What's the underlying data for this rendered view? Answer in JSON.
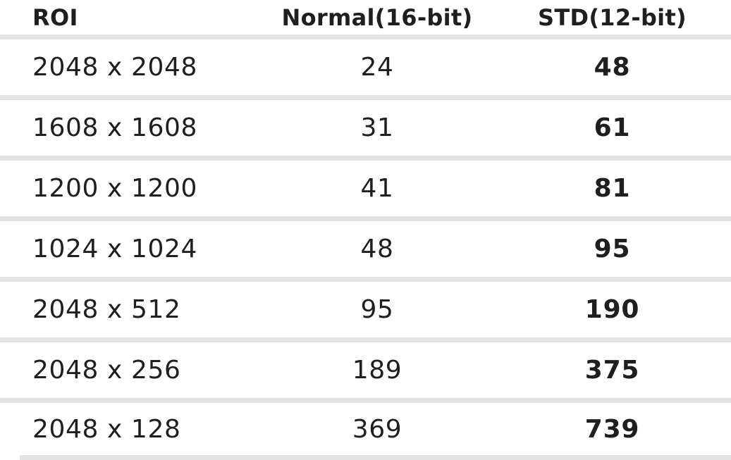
{
  "colors": {
    "page_background": "#ffffff",
    "text": "#1f1f1f",
    "divider": "#e3e3e3"
  },
  "table": {
    "columns": [
      {
        "id": "roi",
        "label": "ROI"
      },
      {
        "id": "normal",
        "label": "Normal(16-bit)"
      },
      {
        "id": "std",
        "label": "STD(12-bit)"
      }
    ],
    "rows": [
      {
        "roi": "2048 x 2048",
        "normal": "24",
        "std": "48"
      },
      {
        "roi": "1608 x 1608",
        "normal": "31",
        "std": "61"
      },
      {
        "roi": "1200 x 1200",
        "normal": "41",
        "std": "81"
      },
      {
        "roi": "1024 x 1024",
        "normal": "48",
        "std": "95"
      },
      {
        "roi": "2048 x 512",
        "normal": "95",
        "std": "190"
      },
      {
        "roi": "2048 x 256",
        "normal": "189",
        "std": "375"
      },
      {
        "roi": "2048 x 128",
        "normal": "369",
        "std": "739"
      }
    ]
  },
  "chart_data": {
    "type": "table",
    "title": "",
    "columns": [
      "ROI",
      "Normal(16-bit)",
      "STD(12-bit)"
    ],
    "rows": [
      [
        "2048 x 2048",
        24,
        48
      ],
      [
        "1608 x 1608",
        31,
        61
      ],
      [
        "1200 x 1200",
        41,
        81
      ],
      [
        "1024 x 1024",
        48,
        95
      ],
      [
        "2048 x 512",
        95,
        190
      ],
      [
        "2048 x 256",
        189,
        375
      ],
      [
        "2048 x 128",
        369,
        739
      ]
    ],
    "layout_hints": {
      "header_bold": true,
      "last_column_bold": true,
      "row_separator": "thick light-gray band",
      "grid": "horizontal separators only"
    }
  }
}
